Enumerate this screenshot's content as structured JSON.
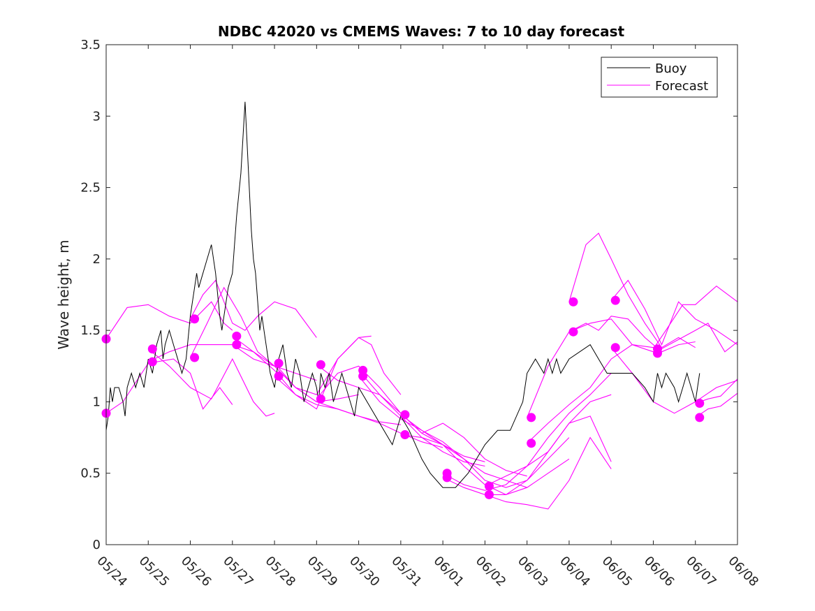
{
  "chart_data": {
    "type": "line",
    "title": "NDBC 42020 vs CMEMS Waves: 7 to 10 day forecast",
    "xlabel": "",
    "ylabel": "Wave height, m",
    "xlim": [
      0,
      15
    ],
    "ylim": [
      0,
      3.5
    ],
    "x_tick_labels": [
      "05/24",
      "05/25",
      "05/26",
      "05/27",
      "05/28",
      "05/29",
      "05/30",
      "05/31",
      "06/01",
      "06/02",
      "06/03",
      "06/04",
      "06/05",
      "06/06",
      "06/07",
      "06/08"
    ],
    "y_ticks": [
      0,
      0.5,
      1,
      1.5,
      2,
      2.5,
      3,
      3.5
    ],
    "y_tick_labels": [
      "0",
      "0.5",
      "1",
      "1.5",
      "2",
      "2.5",
      "3",
      "3.5"
    ],
    "grid": false,
    "legend": {
      "position": "top-right",
      "entries": [
        "Buoy",
        "Forecast"
      ]
    },
    "colors": {
      "buoy": "#000000",
      "forecast": "#ff00ff"
    },
    "buoy": {
      "name": "Buoy",
      "x": [
        0.0,
        0.05,
        0.1,
        0.15,
        0.2,
        0.3,
        0.4,
        0.45,
        0.5,
        0.6,
        0.7,
        0.8,
        0.9,
        1.0,
        1.1,
        1.2,
        1.3,
        1.35,
        1.4,
        1.5,
        1.6,
        1.7,
        1.8,
        1.9,
        2.0,
        2.1,
        2.15,
        2.2,
        2.3,
        2.4,
        2.5,
        2.55,
        2.6,
        2.7,
        2.75,
        2.8,
        2.9,
        3.0,
        3.1,
        3.2,
        3.3,
        3.4,
        3.45,
        3.5,
        3.55,
        3.6,
        3.65,
        3.7,
        3.75,
        3.8,
        3.85,
        3.9,
        4.0,
        4.1,
        4.2,
        4.3,
        4.4,
        4.5,
        4.6,
        4.7,
        4.8,
        4.9,
        5.0,
        5.05,
        5.1,
        5.2,
        5.3,
        5.4,
        5.5,
        5.6,
        5.7,
        5.8,
        5.9,
        6.0,
        6.4,
        6.8,
        7.0,
        7.2,
        7.5,
        7.7,
        8.0,
        8.3,
        8.6,
        8.8,
        9.0,
        9.3,
        9.6,
        9.9,
        10.0,
        10.2,
        10.4,
        10.5,
        10.6,
        10.7,
        10.8,
        11.0,
        11.5,
        11.7,
        11.9,
        12.0,
        12.5,
        12.8,
        13.0,
        13.1,
        13.2,
        13.3,
        13.5,
        13.6,
        13.7,
        13.8,
        14.0,
        14.1
      ],
      "y": [
        0.8,
        0.9,
        1.1,
        1.0,
        1.1,
        1.1,
        1.0,
        0.9,
        1.1,
        1.2,
        1.1,
        1.2,
        1.1,
        1.3,
        1.2,
        1.4,
        1.5,
        1.3,
        1.4,
        1.5,
        1.4,
        1.3,
        1.2,
        1.3,
        1.6,
        1.8,
        1.9,
        1.8,
        1.9,
        2.0,
        2.1,
        2.0,
        1.9,
        1.6,
        1.5,
        1.6,
        1.8,
        1.9,
        2.3,
        2.6,
        3.1,
        2.5,
        2.2,
        2.0,
        1.9,
        1.7,
        1.5,
        1.6,
        1.5,
        1.4,
        1.3,
        1.2,
        1.1,
        1.3,
        1.4,
        1.2,
        1.1,
        1.3,
        1.2,
        1.0,
        1.1,
        1.2,
        1.1,
        1.0,
        1.2,
        1.1,
        1.2,
        1.0,
        1.1,
        1.2,
        1.1,
        1.0,
        0.9,
        1.1,
        0.9,
        0.7,
        0.9,
        0.8,
        0.6,
        0.5,
        0.4,
        0.4,
        0.5,
        0.6,
        0.7,
        0.8,
        0.8,
        1.0,
        1.2,
        1.3,
        1.2,
        1.3,
        1.2,
        1.3,
        1.2,
        1.3,
        1.4,
        1.3,
        1.2,
        1.2,
        1.2,
        1.1,
        1.0,
        1.2,
        1.1,
        1.2,
        1.1,
        1.0,
        1.1,
        1.2,
        1.0,
        1.2
      ]
    },
    "series": [
      {
        "name": "Forecast",
        "x": [
          0.0,
          0.5,
          1.0,
          1.5,
          2.0,
          2.5,
          2.8,
          3.0
        ],
        "y": [
          1.44,
          1.66,
          1.68,
          1.6,
          1.55,
          1.7,
          1.55,
          1.5
        ]
      },
      {
        "name": "Forecast",
        "x": [
          0.0,
          0.4,
          1.0,
          1.6,
          2.0,
          2.3,
          2.7,
          3.0
        ],
        "y": [
          0.92,
          1.0,
          1.27,
          1.3,
          1.2,
          0.95,
          1.1,
          0.98
        ]
      },
      {
        "name": "Forecast",
        "x": [
          1.0,
          1.5,
          2.0,
          2.5,
          3.0,
          3.5,
          3.8,
          4.0
        ],
        "y": [
          1.37,
          1.25,
          1.1,
          1.02,
          1.3,
          1.0,
          0.9,
          0.92
        ]
      },
      {
        "name": "Forecast",
        "x": [
          1.0,
          1.5,
          2.0,
          2.5,
          3.0,
          3.5,
          4.0,
          4.5,
          5.0
        ],
        "y": [
          1.28,
          1.35,
          1.4,
          1.4,
          1.4,
          1.3,
          1.25,
          1.2,
          1.15
        ]
      },
      {
        "name": "Forecast",
        "x": [
          2.0,
          2.3,
          2.6,
          3.0,
          3.3,
          3.6,
          4.0,
          4.5,
          5.0
        ],
        "y": [
          1.58,
          1.75,
          1.85,
          1.55,
          1.5,
          1.6,
          1.7,
          1.65,
          1.45
        ]
      },
      {
        "name": "Forecast",
        "x": [
          2.0,
          2.4,
          2.8,
          3.2,
          3.6,
          4.0,
          4.5,
          5.0,
          5.5,
          6.0
        ],
        "y": [
          1.31,
          1.55,
          1.8,
          1.6,
          1.35,
          1.25,
          1.1,
          1.0,
          1.02,
          1.05
        ]
      },
      {
        "name": "Forecast",
        "x": [
          3.0,
          3.5,
          4.0,
          4.5,
          5.0,
          5.5,
          6.0,
          6.3
        ],
        "y": [
          1.46,
          1.35,
          1.22,
          1.05,
          0.95,
          1.3,
          1.45,
          1.46
        ]
      },
      {
        "name": "Forecast",
        "x": [
          3.0,
          3.5,
          4.0,
          4.5,
          5.0,
          5.5,
          6.0,
          6.5,
          7.0
        ],
        "y": [
          1.4,
          1.35,
          1.25,
          1.1,
          1.0,
          0.95,
          0.9,
          0.86,
          0.84
        ]
      },
      {
        "name": "Forecast",
        "x": [
          4.0,
          4.5,
          5.0,
          5.5,
          6.0,
          6.3,
          6.6,
          7.0
        ],
        "y": [
          1.27,
          1.1,
          1.05,
          1.3,
          1.45,
          1.4,
          1.2,
          1.05
        ]
      },
      {
        "name": "Forecast",
        "x": [
          4.0,
          4.5,
          5.0,
          5.5,
          6.0,
          6.5,
          7.0,
          7.5,
          8.0
        ],
        "y": [
          1.18,
          1.05,
          0.98,
          0.95,
          0.9,
          0.85,
          0.78,
          0.72,
          0.68
        ]
      },
      {
        "name": "Forecast",
        "x": [
          5.0,
          5.5,
          6.0,
          6.5,
          7.0,
          7.5,
          8.0,
          8.5,
          9.0
        ],
        "y": [
          1.26,
          1.15,
          1.1,
          1.05,
          0.9,
          0.75,
          0.65,
          0.58,
          0.55
        ]
      },
      {
        "name": "Forecast",
        "x": [
          5.0,
          5.5,
          6.0,
          6.5,
          7.0,
          7.5,
          8.0,
          8.5,
          9.0
        ],
        "y": [
          1.02,
          1.2,
          1.25,
          1.1,
          0.92,
          0.78,
          0.7,
          0.62,
          0.58
        ]
      },
      {
        "name": "Forecast",
        "x": [
          6.0,
          6.5,
          7.0,
          7.5,
          8.0,
          8.5,
          9.0,
          9.5,
          10.0
        ],
        "y": [
          1.22,
          1.05,
          0.92,
          0.78,
          0.85,
          0.75,
          0.6,
          0.52,
          0.48
        ]
      },
      {
        "name": "Forecast",
        "x": [
          6.0,
          6.5,
          7.0,
          7.5,
          8.0,
          8.5,
          9.0,
          9.5,
          10.0
        ],
        "y": [
          1.18,
          1.0,
          0.88,
          0.8,
          0.7,
          0.6,
          0.5,
          0.45,
          0.4
        ]
      },
      {
        "name": "Forecast",
        "x": [
          7.0,
          7.5,
          8.0,
          8.5,
          9.0,
          9.5,
          10.0,
          10.5,
          11.0
        ],
        "y": [
          0.91,
          0.8,
          0.72,
          0.6,
          0.45,
          0.4,
          0.45,
          0.6,
          0.75
        ]
      },
      {
        "name": "Forecast",
        "x": [
          7.0,
          7.5,
          8.0,
          8.5,
          9.0,
          9.5,
          10.0,
          10.5,
          11.0
        ],
        "y": [
          0.77,
          0.75,
          0.7,
          0.55,
          0.42,
          0.35,
          0.4,
          0.5,
          0.6
        ]
      },
      {
        "name": "Forecast",
        "x": [
          8.0,
          8.5,
          9.0,
          9.5,
          10.0,
          10.5,
          11.0,
          11.5,
          12.0
        ],
        "y": [
          0.5,
          0.42,
          0.38,
          0.42,
          0.55,
          0.75,
          0.92,
          1.05,
          1.2
        ]
      },
      {
        "name": "Forecast",
        "x": [
          8.0,
          8.5,
          9.0,
          9.5,
          10.0,
          10.5,
          11.0,
          11.5,
          12.0
        ],
        "y": [
          0.47,
          0.4,
          0.35,
          0.35,
          0.45,
          0.65,
          0.85,
          1.0,
          1.05
        ]
      },
      {
        "name": "Forecast",
        "x": [
          9.0,
          9.5,
          10.0,
          10.5,
          11.0,
          11.5,
          12.0
        ],
        "y": [
          0.41,
          0.48,
          0.55,
          0.65,
          0.85,
          0.9,
          0.58
        ]
      },
      {
        "name": "Forecast",
        "x": [
          9.0,
          9.5,
          10.0,
          10.5,
          11.0,
          11.5,
          12.0
        ],
        "y": [
          0.35,
          0.3,
          0.28,
          0.25,
          0.45,
          0.75,
          0.53
        ]
      },
      {
        "name": "Forecast",
        "x": [
          10.0,
          10.5,
          11.0,
          11.5,
          12.0,
          12.5,
          13.0
        ],
        "y": [
          0.89,
          1.25,
          1.49,
          1.55,
          1.58,
          1.4,
          1.35
        ]
      },
      {
        "name": "Forecast",
        "x": [
          10.0,
          10.5,
          11.0,
          11.5,
          12.0,
          12.5,
          13.0
        ],
        "y": [
          0.71,
          0.85,
          0.98,
          1.1,
          1.3,
          1.4,
          1.38
        ]
      },
      {
        "name": "Forecast",
        "x": [
          11.0,
          11.4,
          11.7,
          12.0,
          12.4,
          12.8,
          13.2,
          13.6,
          14.0
        ],
        "y": [
          1.7,
          2.1,
          2.18,
          2.0,
          1.75,
          1.55,
          1.38,
          1.45,
          1.38
        ]
      },
      {
        "name": "Forecast",
        "x": [
          11.0,
          11.4,
          11.7,
          12.0,
          12.4,
          12.8,
          13.2,
          13.6,
          14.0
        ],
        "y": [
          1.49,
          1.55,
          1.5,
          1.6,
          1.58,
          1.45,
          1.35,
          1.4,
          1.42
        ]
      },
      {
        "name": "Forecast",
        "x": [
          12.0,
          12.4,
          12.8,
          13.2,
          13.6,
          14.0,
          14.5,
          15.0
        ],
        "y": [
          1.71,
          1.85,
          1.65,
          1.4,
          1.7,
          1.58,
          1.5,
          1.4
        ]
      },
      {
        "name": "Forecast",
        "x": [
          12.0,
          12.5,
          13.0,
          13.5,
          14.0,
          14.5,
          15.0
        ],
        "y": [
          1.38,
          1.2,
          1.0,
          0.92,
          1.0,
          1.1,
          1.15
        ]
      },
      {
        "name": "Forecast",
        "x": [
          13.0,
          13.3,
          13.7,
          14.0,
          14.5,
          15.0
        ],
        "y": [
          1.37,
          1.5,
          1.68,
          1.68,
          1.81,
          1.7
        ]
      },
      {
        "name": "Forecast",
        "x": [
          13.0,
          13.5,
          14.0,
          14.3,
          14.7,
          15.0
        ],
        "y": [
          1.34,
          1.42,
          1.5,
          1.55,
          1.35,
          1.42
        ]
      },
      {
        "name": "Forecast",
        "x": [
          14.0,
          14.3,
          14.6,
          15.0
        ],
        "y": [
          0.99,
          1.02,
          1.04,
          1.16
        ]
      },
      {
        "name": "Forecast",
        "x": [
          14.0,
          14.3,
          14.6,
          15.0
        ],
        "y": [
          0.89,
          0.95,
          0.97,
          1.06
        ]
      }
    ],
    "forecast_start_markers": {
      "x": [
        0.0,
        0.0,
        1.1,
        1.1,
        2.1,
        2.1,
        3.1,
        3.1,
        4.1,
        4.1,
        5.1,
        5.1,
        6.1,
        6.1,
        7.1,
        7.1,
        8.1,
        8.1,
        9.1,
        9.1,
        10.1,
        10.1,
        11.1,
        11.1,
        12.1,
        12.1,
        13.1,
        13.1,
        14.1,
        14.1
      ],
      "y": [
        1.44,
        0.92,
        1.37,
        1.28,
        1.58,
        1.31,
        1.46,
        1.4,
        1.27,
        1.18,
        1.26,
        1.02,
        1.22,
        1.18,
        0.91,
        0.77,
        0.5,
        0.47,
        0.41,
        0.35,
        0.89,
        0.71,
        1.7,
        1.49,
        1.71,
        1.38,
        1.37,
        1.34,
        0.99,
        0.89
      ]
    }
  }
}
